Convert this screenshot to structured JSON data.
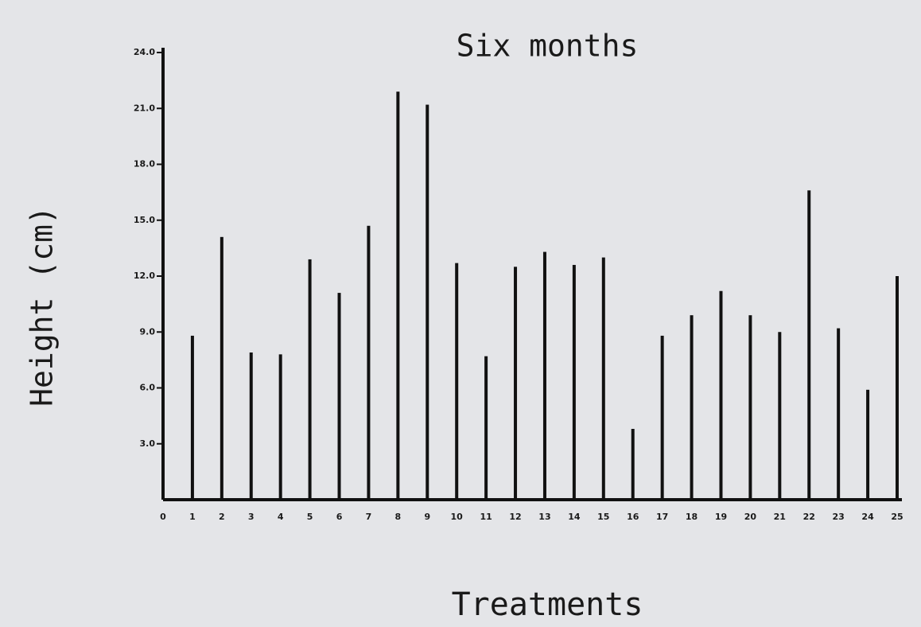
{
  "chart_data": {
    "type": "bar",
    "title": "Six months",
    "x_label": "Treatments",
    "y_label": "Height (cm)",
    "x": [
      1,
      2,
      3,
      4,
      5,
      6,
      7,
      8,
      9,
      10,
      11,
      12,
      13,
      14,
      15,
      16,
      17,
      18,
      19,
      20,
      21,
      22,
      23,
      24,
      25
    ],
    "values": [
      8.8,
      14.1,
      7.9,
      7.8,
      12.9,
      11.1,
      14.7,
      21.9,
      21.2,
      12.7,
      7.7,
      12.5,
      13.3,
      12.6,
      13.0,
      3.8,
      8.8,
      9.9,
      11.2,
      9.9,
      9.0,
      16.6,
      9.2,
      5.9,
      12.0
    ],
    "color": "#111111",
    "xlim": [
      0,
      25
    ],
    "xticks": [
      0,
      1,
      2,
      3,
      4,
      5,
      6,
      7,
      8,
      9,
      10,
      11,
      12,
      13,
      14,
      15,
      16,
      17,
      18,
      19,
      20,
      21,
      22,
      23,
      24,
      25
    ],
    "ylim": [
      0,
      24
    ],
    "yticks": [
      {
        "value": 3,
        "label": "3.0"
      },
      {
        "value": 6,
        "label": "6.0"
      },
      {
        "value": 9,
        "label": "9.0"
      },
      {
        "value": 12,
        "label": "12.0"
      },
      {
        "value": 15,
        "label": "15.0"
      },
      {
        "value": 18,
        "label": "18.0"
      },
      {
        "value": 21,
        "label": "21.0"
      },
      {
        "value": 24,
        "label": "24.0"
      }
    ],
    "grid": false
  }
}
